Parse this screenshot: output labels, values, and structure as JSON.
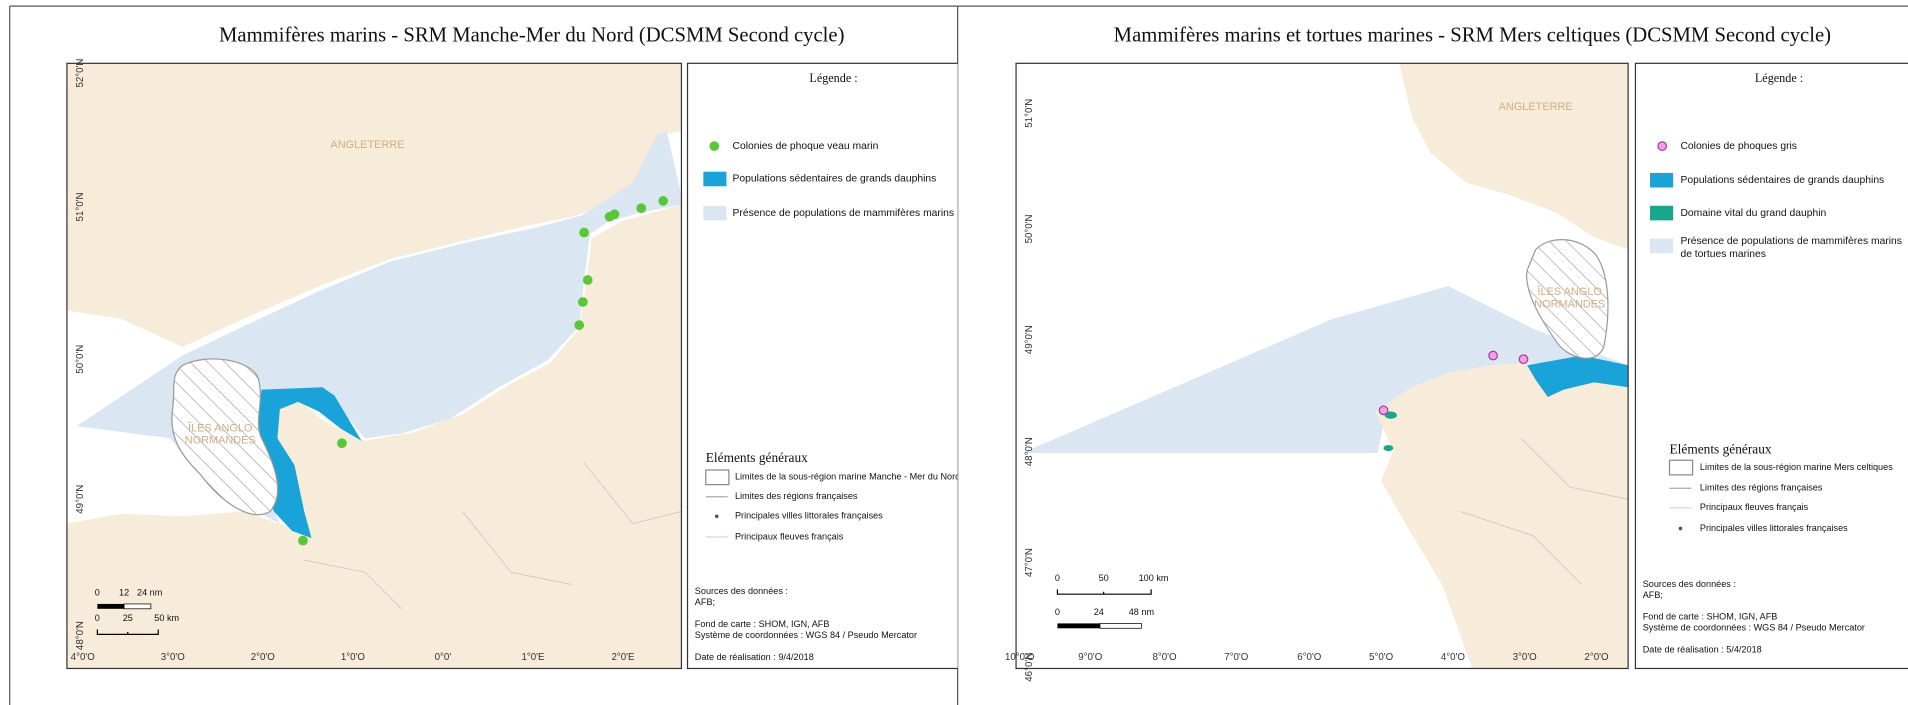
{
  "panels": [
    {
      "title": "Mammifères marins - SRM Manche-Mer du Nord (DCSMM Second cycle)",
      "latitude_labels": [
        "52°0'N",
        "51°0'N",
        "50°0'N",
        "49°0'N",
        "48°0'N"
      ],
      "longitude_labels": [
        "4°0'O",
        "3°0'O",
        "2°0'O",
        "1°0'O",
        "0°0'",
        "1°0'E",
        "2°0'E"
      ],
      "place_labels": [
        "ANGLETERRE",
        "ÎLES ANGLO",
        "NORMANDES"
      ],
      "scale_bar": {
        "nm": [
          "0",
          "12",
          "24 nm"
        ],
        "km": [
          "0",
          "25",
          "50 km"
        ]
      },
      "legend": {
        "title": "Légende :",
        "items": [
          [
            "Colonies de phoque veau marin"
          ],
          [
            "Populations sédentaires de grands dauphins"
          ],
          [
            "Présence de populations de mammifères marins"
          ]
        ]
      },
      "general": {
        "title": "Eléments généraux",
        "items": [
          "Limites de la sous-région marine Manche - Mer du Nord",
          "Limites des régions françaises",
          "Principales villes littorales françaises",
          "Principaux fleuves français"
        ]
      },
      "sources": [
        "Sources des données :",
        "AFB;",
        "Fond de carte : SHOM, IGN, AFB",
        "Système de coordonnées : WGS 84 / Pseudo Mercator",
        "Date de réalisation : 9/4/2018"
      ]
    },
    {
      "title": "Mammifères marins et tortues marines - SRM Mers celtiques (DCSMM Second cycle)",
      "latitude_labels": [
        "51°0'N",
        "50°0'N",
        "49°0'N",
        "48°0'N",
        "47°0'N",
        "46°0'N"
      ],
      "longitude_labels": [
        "10°0'O",
        "9°0'O",
        "8°0'O",
        "7°0'O",
        "6°0'O",
        "5°0'O",
        "4°0'O",
        "3°0'O",
        "2°0'O"
      ],
      "place_labels": [
        "ANGLETERRE",
        "ÎLES ANGLO",
        "NORMANDES"
      ],
      "scale_bar": {
        "km": [
          "0",
          "50",
          "100 km"
        ],
        "nm": [
          "0",
          "24",
          "48 nm"
        ]
      },
      "legend": {
        "title": "Légende :",
        "items": [
          [
            "Colonies de phoques gris"
          ],
          [
            "Populations sédentaires de grands dauphins"
          ],
          [
            "Domaine vital du grand dauphin"
          ],
          [
            "Présence de populations de mammifères marins",
            "de tortues marines"
          ]
        ]
      },
      "general": {
        "title": "Eléments généraux",
        "items": [
          "Limites de la sous-région marine Mers celtiques",
          "Limites des régions françaises",
          "Principaux fleuves français",
          "Principales villes littorales françaises"
        ]
      },
      "sources": [
        "Sources des données :",
        "AFB;",
        "Fond de carte : SHOM, IGN, AFB",
        "Système de coordonnées : WGS 84 / Pseudo Mercator",
        "Date de réalisation : 5/4/2018"
      ]
    }
  ]
}
